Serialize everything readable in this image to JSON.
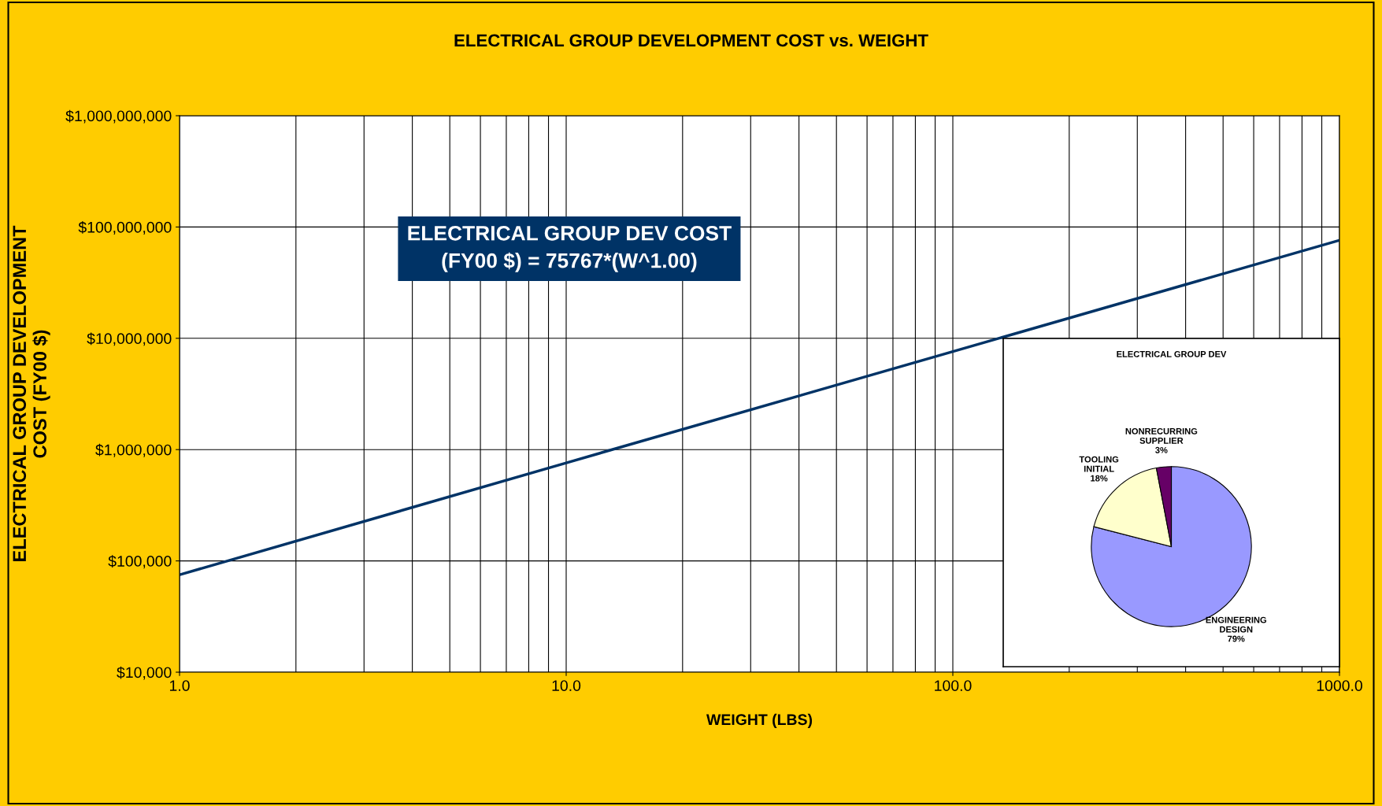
{
  "chart_data": [
    {
      "type": "line",
      "title": "ELECTRICAL GROUP DEVELOPMENT COST vs. WEIGHT",
      "xlabel": "WEIGHT (LBS)",
      "ylabel": "ELECTRICAL GROUP DEVELOPMENT\nCOST (FY00 $)",
      "x": [
        1,
        10,
        100,
        1000
      ],
      "series": [
        {
          "color": "#003366",
          "values": [
            75000,
            760000,
            7600000,
            76000000
          ]
        }
      ],
      "log": "xy",
      "xlim": [
        1,
        1000
      ],
      "ylim": [
        10000,
        1000000000
      ],
      "xticks": [
        {
          "value": 1,
          "label": "1.0"
        },
        {
          "value": 10,
          "label": "10.0"
        },
        {
          "value": 100,
          "label": "100.0"
        },
        {
          "value": 1000,
          "label": "1000.0"
        }
      ],
      "yticks": [
        {
          "value": 10000,
          "label": "$10,000"
        },
        {
          "value": 100000,
          "label": "$100,000"
        },
        {
          "value": 1000000,
          "label": "$1,000,000"
        },
        {
          "value": 10000000,
          "label": "$10,000,000"
        },
        {
          "value": 100000000,
          "label": "$100,000,000"
        },
        {
          "value": 1000000000,
          "label": "$1,000,000,000"
        }
      ],
      "grid": true,
      "legend": false,
      "marker": "none",
      "line_style": "solid",
      "annotations": [
        "ELECTRICAL GROUP DEV COST\n(FY00 $) = 75767*(W^1.00)"
      ]
    },
    {
      "type": "pie",
      "title": "ELECTRICAL GROUP DEV",
      "categories": [
        "ENGINEERING\nDESIGN",
        "TOOLING\nINITIAL",
        "NONRECURRING\nSUPPLIER"
      ],
      "values": [
        79,
        18,
        3
      ],
      "value_labels": [
        "79%",
        "18%",
        "3%"
      ],
      "colors": [
        "#9999ff",
        "#ffffcc",
        "#660066"
      ]
    }
  ]
}
